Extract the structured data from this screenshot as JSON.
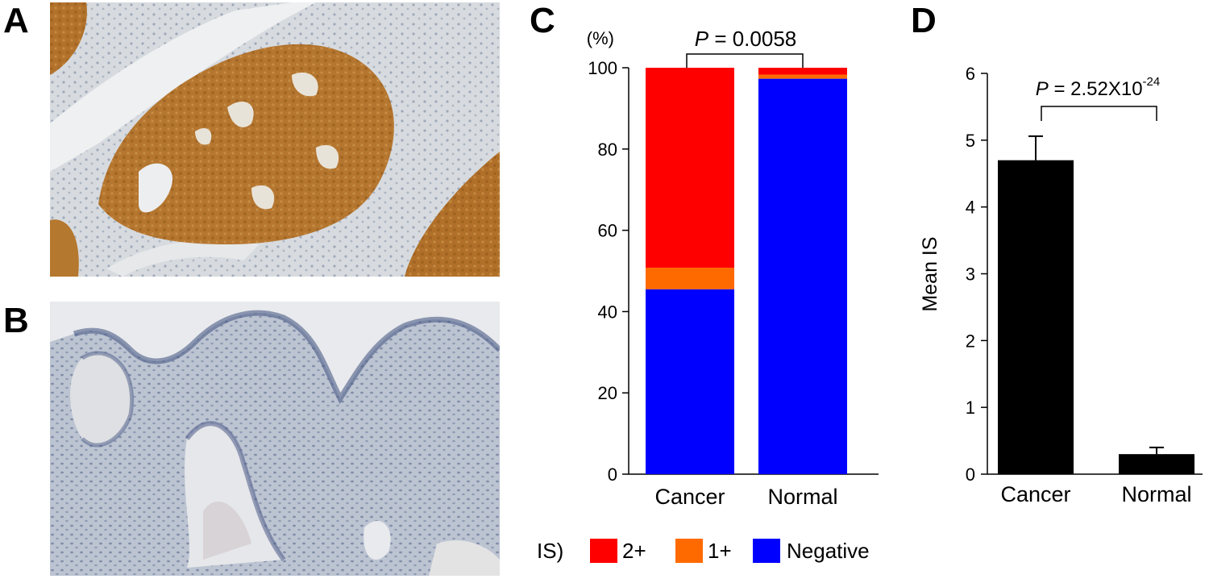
{
  "panels": {
    "a": {
      "letter": "A"
    },
    "b": {
      "letter": "B"
    },
    "c": {
      "letter": "C"
    },
    "d": {
      "letter": "D"
    }
  },
  "micrographs": {
    "a": {
      "stain": "brown",
      "colors": {
        "background": "#d9dde0",
        "stain": "#b5762c",
        "stroma": "#c7cdd3",
        "nuclei": "#5a6c8c"
      }
    },
    "b": {
      "stain": "blue",
      "colors": {
        "background": "#c8ced8",
        "tissue": "#a9b2c3",
        "nuclei": "#3e507c",
        "lumen": "#e9eaed"
      }
    }
  },
  "chart_data": [
    {
      "type": "bar",
      "stacked": true,
      "panel": "C",
      "unit_label": "(%)",
      "categories": [
        "Cancer",
        "Normal"
      ],
      "series": [
        {
          "name": "Negative",
          "color": "#0000ff",
          "values": [
            45.5,
            97.3
          ]
        },
        {
          "name": "1+",
          "color": "#ff6a00",
          "values": [
            5.3,
            1.0
          ]
        },
        {
          "name": "2+",
          "color": "#ff0000",
          "values": [
            49.2,
            1.7
          ]
        }
      ],
      "ylim": [
        0,
        100
      ],
      "yticks": [
        0,
        20,
        40,
        60,
        80,
        100
      ],
      "legend": {
        "prefix": "IS)",
        "order": [
          "2+",
          "1+",
          "Negative"
        ],
        "placement": "bottom"
      },
      "annotation": {
        "p_label": "P",
        "p_value": " = 0.0058"
      },
      "grid": false
    },
    {
      "type": "bar",
      "panel": "D",
      "categories": [
        "Cancer",
        "Normal"
      ],
      "values": [
        4.7,
        0.3
      ],
      "errors": [
        0.36,
        0.1
      ],
      "color": "#000000",
      "ylabel": "Mean IS",
      "ylim": [
        0,
        6
      ],
      "yticks": [
        0,
        1,
        2,
        3,
        4,
        5,
        6
      ],
      "annotation": {
        "p_label": "P",
        "p_value": " = 2.52X10",
        "p_exponent": "-24"
      },
      "grid": false
    }
  ]
}
